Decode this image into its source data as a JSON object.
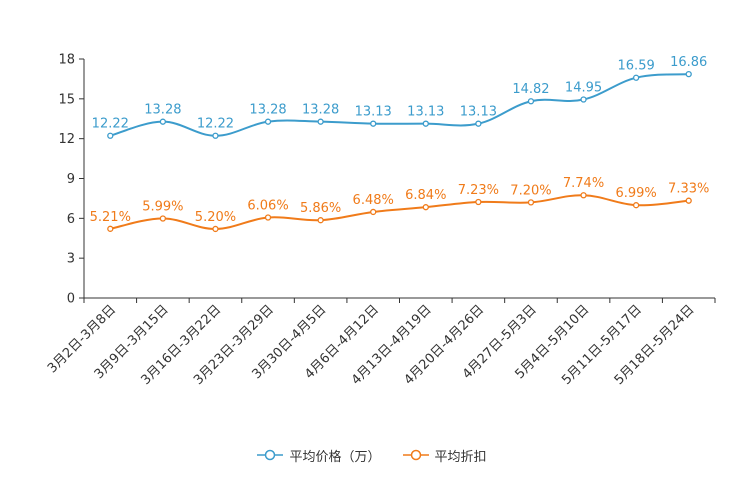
{
  "chart_data": {
    "type": "line",
    "categories": [
      "3月2日-3月8日",
      "3月9日-3月15日",
      "3月16日-3月22日",
      "3月23日-3月29日",
      "3月30日-4月5日",
      "4月6日-4月12日",
      "4月13日-4月19日",
      "4月20日-4月26日",
      "4月27日-5月3日",
      "5月4日-5月10日",
      "5月11日-5月17日",
      "5月18日-5月24日"
    ],
    "yticks": [
      0,
      3,
      6,
      9,
      12,
      15,
      18
    ],
    "ylim": [
      0,
      18
    ],
    "series": [
      {
        "name": "平均价格（万）",
        "color": "#3c9ccc",
        "values": [
          12.22,
          13.28,
          12.22,
          13.28,
          13.28,
          13.13,
          13.13,
          13.13,
          14.82,
          14.95,
          16.59,
          16.86
        ],
        "labels": [
          "12.22",
          "13.28",
          "12.22",
          "13.28",
          "13.28",
          "13.13",
          "13.13",
          "13.13",
          "14.82",
          "14.95",
          "16.59",
          "16.86"
        ]
      },
      {
        "name": "平均折扣",
        "color": "#f07b1a",
        "values": [
          5.21,
          5.99,
          5.2,
          6.06,
          5.86,
          6.48,
          6.84,
          7.23,
          7.2,
          7.74,
          6.99,
          7.33
        ],
        "labels": [
          "5.21%",
          "5.99%",
          "5.20%",
          "6.06%",
          "5.86%",
          "6.48%",
          "6.84%",
          "7.23%",
          "7.20%",
          "7.74%",
          "6.99%",
          "7.33%"
        ]
      }
    ],
    "legend_position": "bottom-center"
  }
}
